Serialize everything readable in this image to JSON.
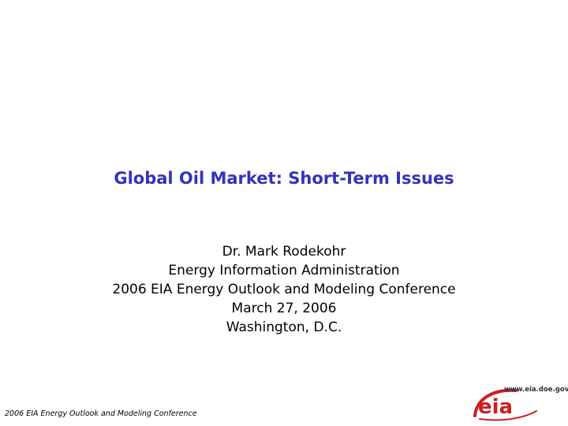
{
  "slide": {
    "title": "Global Oil Market: Short-Term Issues",
    "presenter_lines": [
      "Dr. Mark Rodekohr",
      "Energy Information Administration",
      "2006 EIA Energy Outlook and Modeling Conference",
      "March 27, 2006",
      "Washington, D.C."
    ],
    "footer": "2006 EIA Energy Outlook and Modeling Conference",
    "logo": {
      "url": "www.eia.doe.gov",
      "wordmark": "eia",
      "icon": "eia-logo-icon"
    }
  },
  "colors": {
    "title": "#3333bb",
    "text": "#000000",
    "logo_red": "#cc1f1f",
    "background": "#ffffff"
  }
}
